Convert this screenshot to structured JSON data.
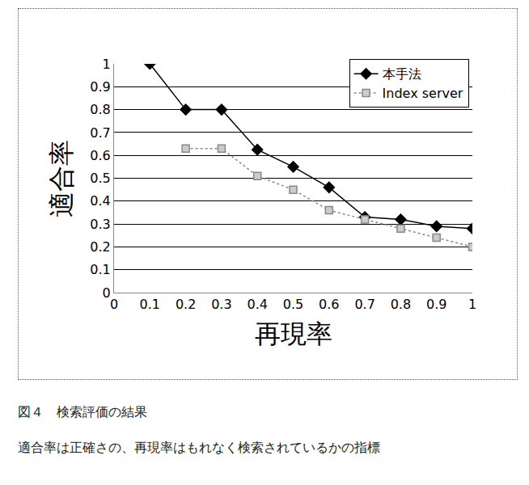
{
  "chart_data": {
    "type": "line",
    "x_label": "再現率",
    "y_label": "適合率",
    "x": [
      0.1,
      0.2,
      0.3,
      0.4,
      0.5,
      0.6,
      0.7,
      0.8,
      0.9,
      1
    ],
    "series": [
      {
        "name": "本手法",
        "color": "#000000",
        "marker": "diamond",
        "line_style": "solid",
        "values": [
          1,
          0.8,
          0.8,
          0.625,
          0.55,
          0.46,
          0.33,
          0.32,
          0.29,
          0.28
        ]
      },
      {
        "name": "Index server",
        "color": "#888888",
        "marker": "square",
        "line_style": "dot",
        "values": [
          null,
          0.63,
          0.63,
          0.51,
          0.45,
          0.36,
          0.32,
          0.28,
          0.24,
          0.2
        ]
      }
    ],
    "xlim": [
      0,
      1
    ],
    "xticks": [
      0,
      0.1,
      0.2,
      0.3,
      0.4,
      0.5,
      0.6,
      0.7,
      0.8,
      0.9,
      1
    ],
    "ylim": [
      0,
      1
    ],
    "yticks": [
      0,
      0.1,
      0.2,
      0.3,
      0.4,
      0.5,
      0.6,
      0.7,
      0.8,
      0.9,
      1
    ],
    "grid": "y",
    "legend": "upper right",
    "annotations": [
      "図４　検索評価の結果",
      "適合率は正確さの、再現率はもれなく検索されているかの指標"
    ]
  }
}
